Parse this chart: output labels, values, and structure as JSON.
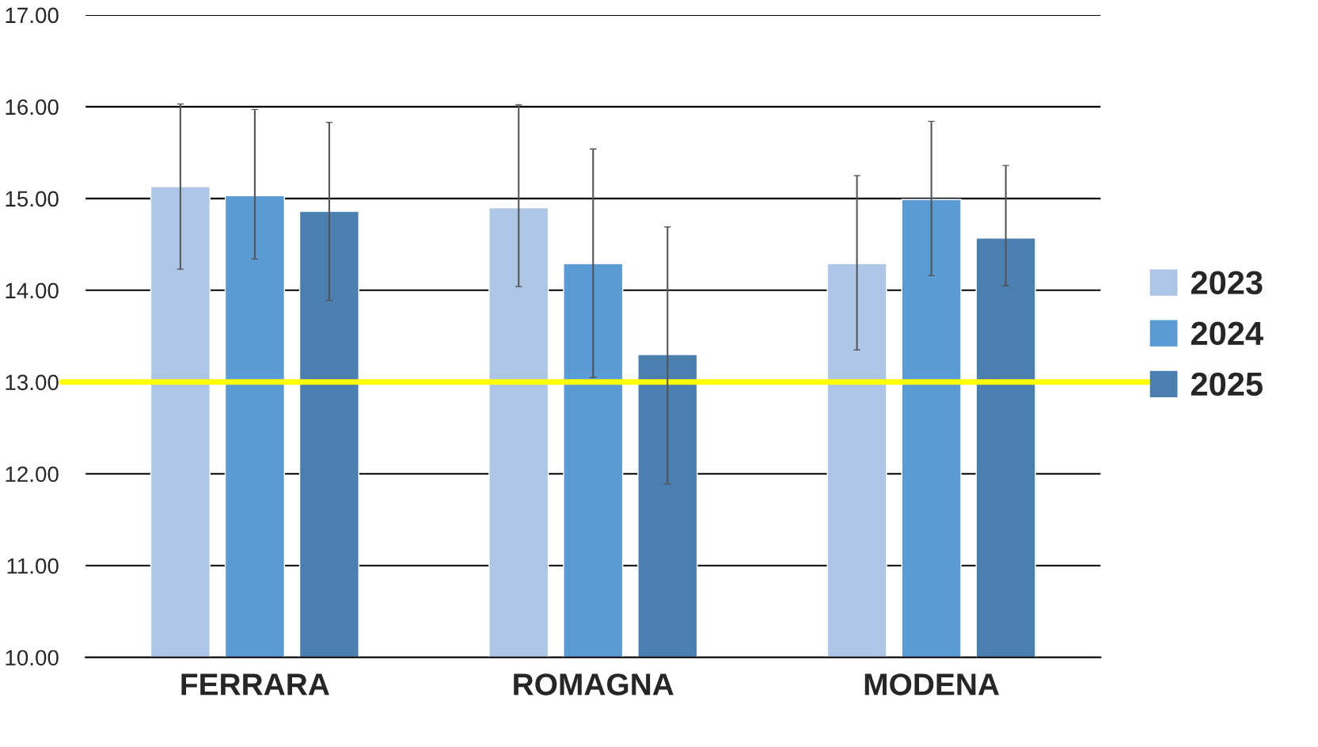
{
  "chart_data": {
    "type": "bar",
    "categories": [
      "FERRARA",
      "ROMAGNA",
      "MODENA"
    ],
    "series": [
      {
        "name": "2023",
        "color": "#aec6e6",
        "values": [
          15.13,
          14.9,
          14.29
        ],
        "errors": [
          [
            14.23,
            16.03
          ],
          [
            14.04,
            16.02
          ],
          [
            13.35,
            15.25
          ]
        ]
      },
      {
        "name": "2024",
        "color": "#5b9bd5",
        "values": [
          15.03,
          14.29,
          14.99
        ],
        "errors": [
          [
            14.34,
            15.97
          ],
          [
            13.05,
            15.54
          ],
          [
            14.16,
            15.84
          ]
        ]
      },
      {
        "name": "2025",
        "color": "#4a7fb0",
        "values": [
          14.86,
          13.3,
          14.57
        ],
        "errors": [
          [
            13.89,
            15.83
          ],
          [
            11.89,
            14.69
          ],
          [
            14.05,
            15.36
          ]
        ]
      }
    ],
    "ylim": [
      10,
      17
    ],
    "yticks": [
      {
        "value": 10,
        "label": "10.00"
      },
      {
        "value": 11,
        "label": "11.00"
      },
      {
        "value": 12,
        "label": "12.00"
      },
      {
        "value": 13,
        "label": "13.00"
      },
      {
        "value": 14,
        "label": "14.00"
      },
      {
        "value": 15,
        "label": "15.00"
      },
      {
        "value": 16,
        "label": "16.00"
      },
      {
        "value": 17,
        "label": "17.00"
      }
    ],
    "grid": "y",
    "legend": "right",
    "ref_lines": [
      {
        "axis": "y",
        "value": 13,
        "color": "#ffff00"
      }
    ]
  }
}
